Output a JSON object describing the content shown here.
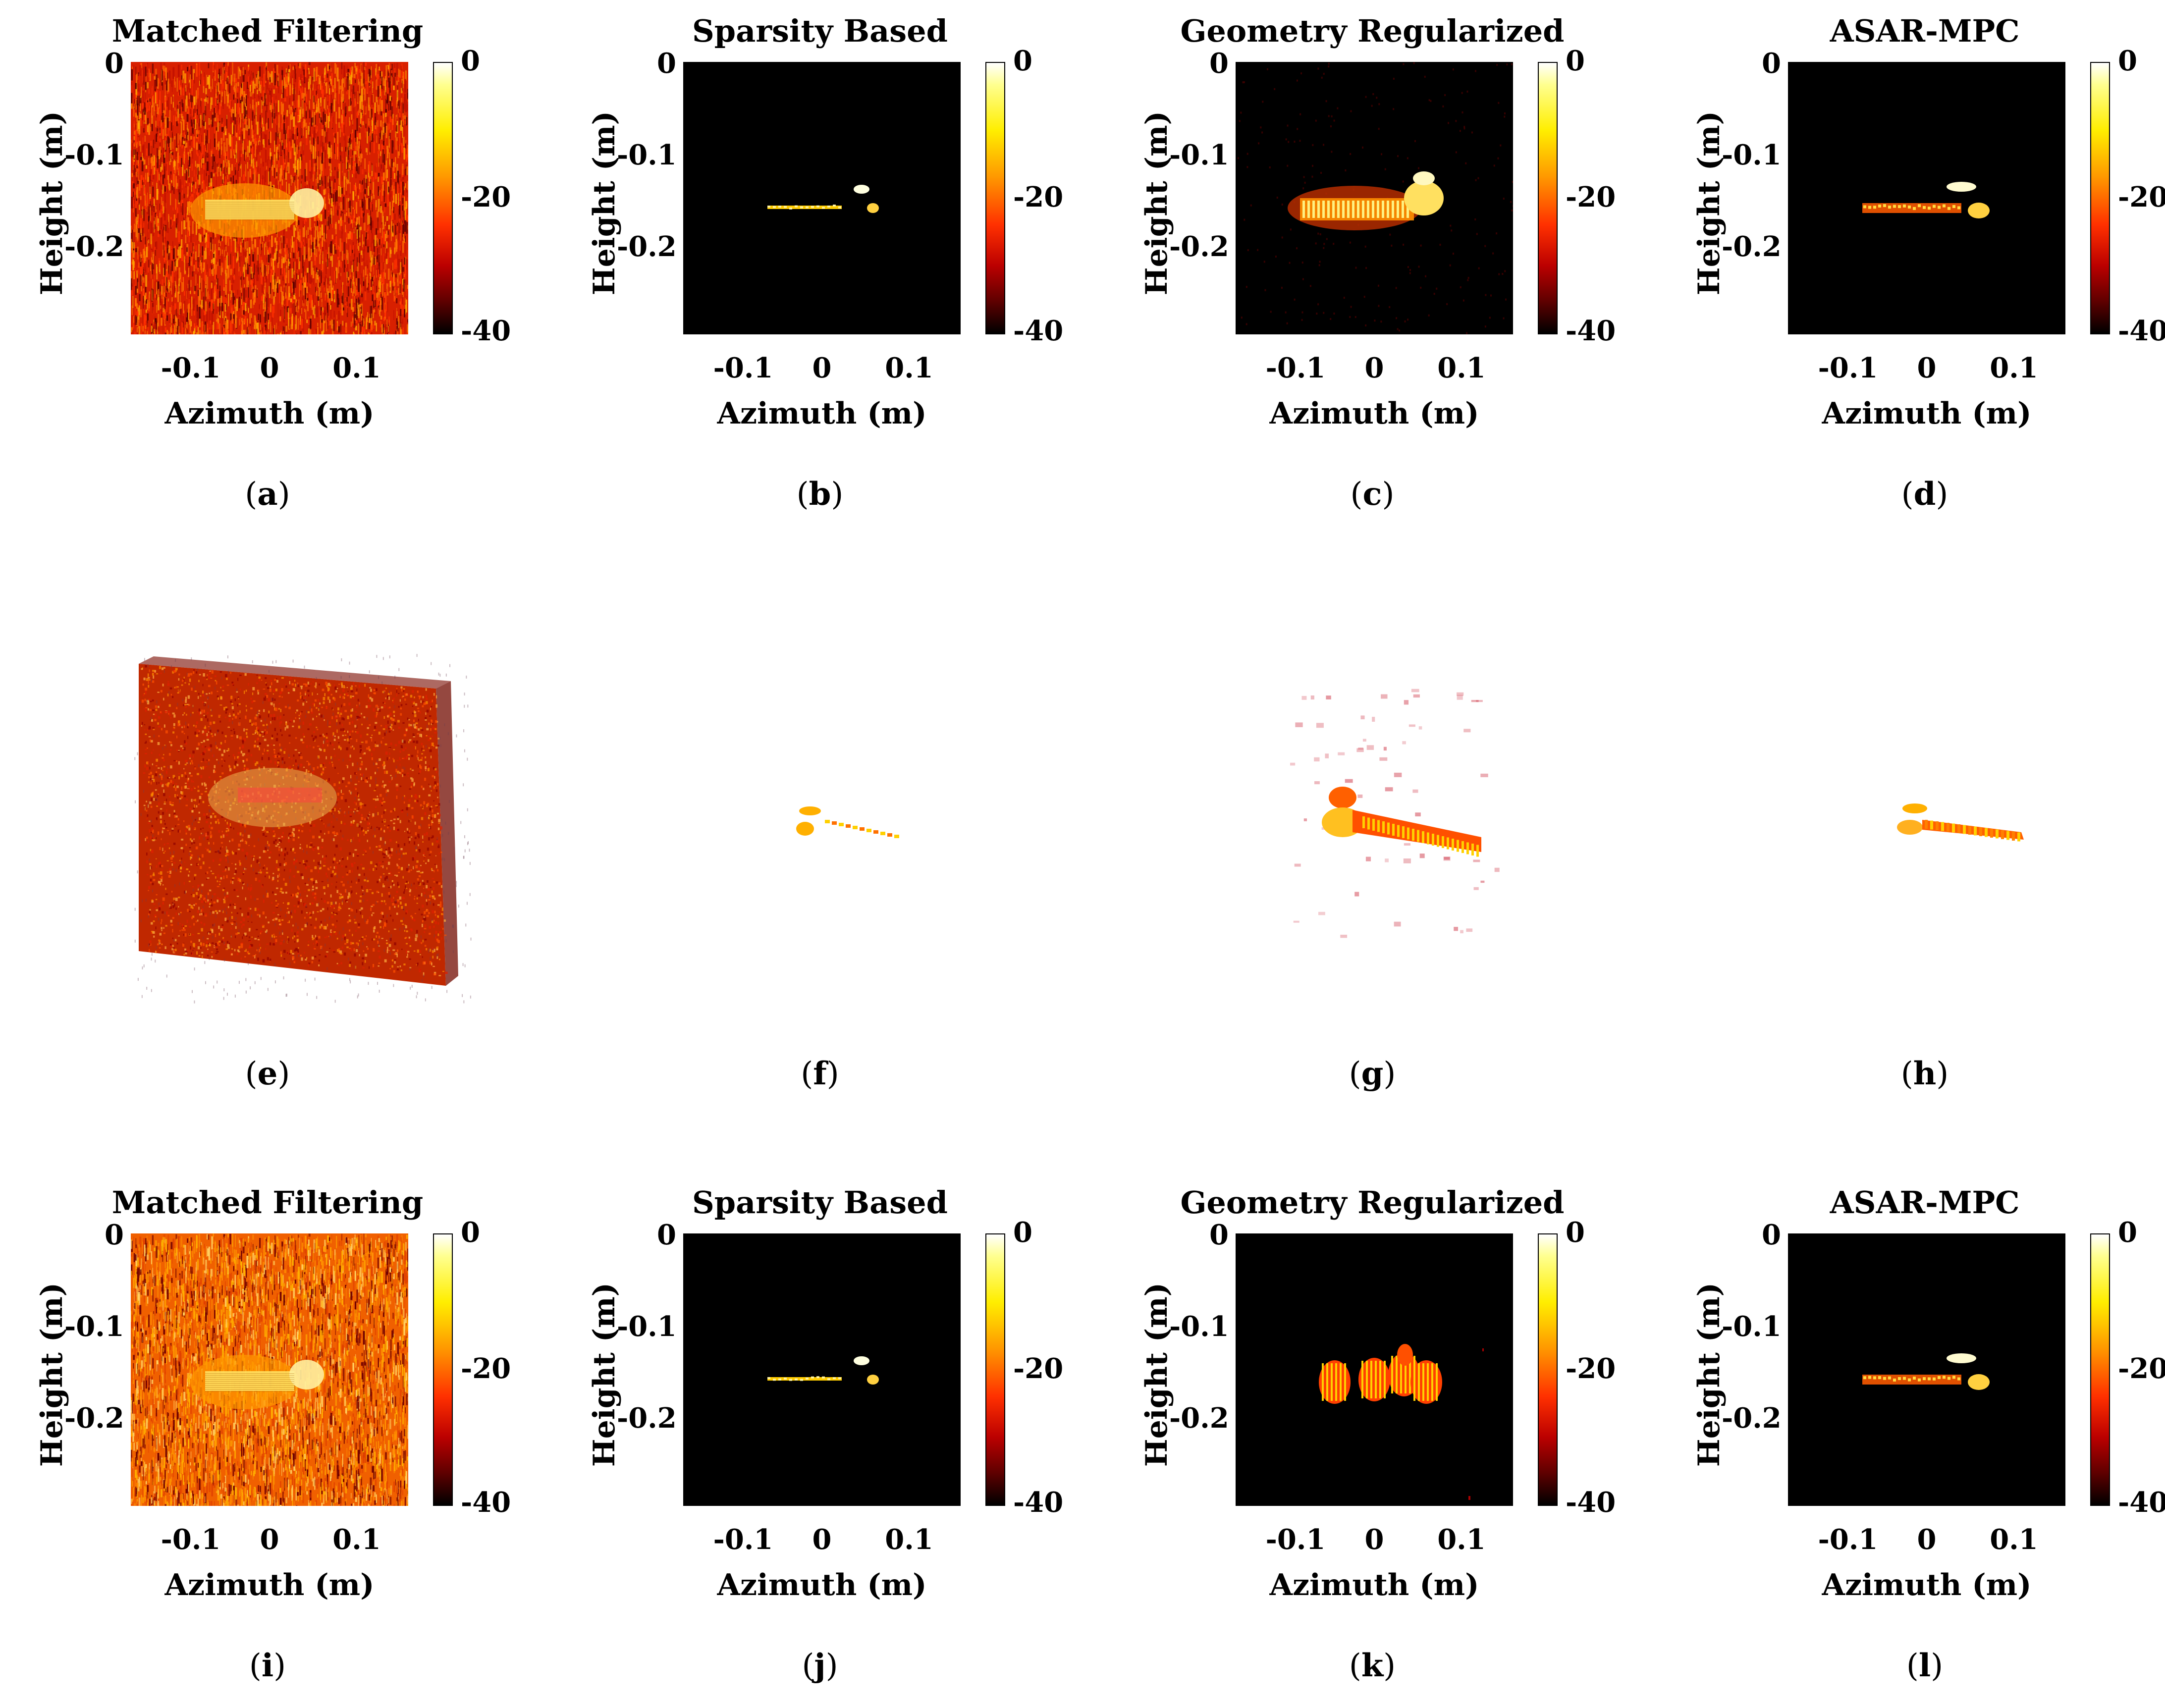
{
  "figure": {
    "rows": [
      {
        "panels": [
          {
            "id": "a",
            "title": "Matched Filtering",
            "ylabel": "Height (m)",
            "xlabel": "Azimuth (m)",
            "yticks": [
              "0",
              "-0.1",
              "-0.2"
            ],
            "xticks": [
              "-0.1",
              "0",
              "0.1"
            ],
            "cbar_ticks": [
              "0",
              "-20",
              "-40"
            ],
            "caption": "a",
            "style": "matched"
          },
          {
            "id": "b",
            "title": "Sparsity Based",
            "ylabel": "Height (m)",
            "xlabel": "Azimuth (m)",
            "yticks": [
              "0",
              "-0.1",
              "-0.2"
            ],
            "xticks": [
              "-0.1",
              "0",
              "0.1"
            ],
            "cbar_ticks": [
              "0",
              "-20",
              "-40"
            ],
            "caption": "b",
            "style": "sparse"
          },
          {
            "id": "c",
            "title": "Geometry Regularized",
            "ylabel": "Height (m)",
            "xlabel": "Azimuth (m)",
            "yticks": [
              "0",
              "-0.1",
              "-0.2"
            ],
            "xticks": [
              "-0.1",
              "0",
              "0.1"
            ],
            "cbar_ticks": [
              "0",
              "-20",
              "-40"
            ],
            "caption": "c",
            "style": "geometry"
          },
          {
            "id": "d",
            "title": "ASAR-MPC",
            "ylabel": "Height (m)",
            "xlabel": "Azimuth (m)",
            "yticks": [
              "0",
              "-0.1",
              "-0.2"
            ],
            "xticks": [
              "-0.1",
              "0",
              "0.1"
            ],
            "cbar_ticks": [
              "0",
              "-20",
              "-40"
            ],
            "caption": "d",
            "style": "asar"
          }
        ]
      },
      {
        "panels": [
          {
            "id": "e",
            "caption": "e",
            "style": "vol-matched"
          },
          {
            "id": "f",
            "caption": "f",
            "style": "vol-sparse"
          },
          {
            "id": "g",
            "caption": "g",
            "style": "vol-geometry"
          },
          {
            "id": "h",
            "caption": "h",
            "style": "vol-asar"
          }
        ]
      },
      {
        "panels": [
          {
            "id": "i",
            "title": "Matched Filtering",
            "ylabel": "Height (m)",
            "xlabel": "Azimuth (m)",
            "yticks": [
              "0",
              "-0.1",
              "-0.2"
            ],
            "xticks": [
              "-0.1",
              "0",
              "0.1"
            ],
            "cbar_ticks": [
              "0",
              "-20",
              "-40"
            ],
            "caption": "i",
            "style": "matched2"
          },
          {
            "id": "j",
            "title": "Sparsity Based",
            "ylabel": "Height (m)",
            "xlabel": "Azimuth (m)",
            "yticks": [
              "0",
              "-0.1",
              "-0.2"
            ],
            "xticks": [
              "-0.1",
              "0",
              "0.1"
            ],
            "cbar_ticks": [
              "0",
              "-20",
              "-40"
            ],
            "caption": "j",
            "style": "sparse"
          },
          {
            "id": "k",
            "title": "Geometry Regularized",
            "ylabel": "Height (m)",
            "xlabel": "Azimuth (m)",
            "yticks": [
              "0",
              "-0.1",
              "-0.2"
            ],
            "xticks": [
              "-0.1",
              "0",
              "0.1"
            ],
            "cbar_ticks": [
              "0",
              "-20",
              "-40"
            ],
            "caption": "k",
            "style": "geometry2"
          },
          {
            "id": "l",
            "title": "ASAR-MPC",
            "ylabel": "Height (m)",
            "xlabel": "Azimuth (m)",
            "yticks": [
              "0",
              "-0.1",
              "-0.2"
            ],
            "xticks": [
              "-0.1",
              "0",
              "0.1"
            ],
            "cbar_ticks": [
              "0",
              "-20",
              "-40"
            ],
            "caption": "l",
            "style": "asar"
          }
        ]
      }
    ]
  }
}
